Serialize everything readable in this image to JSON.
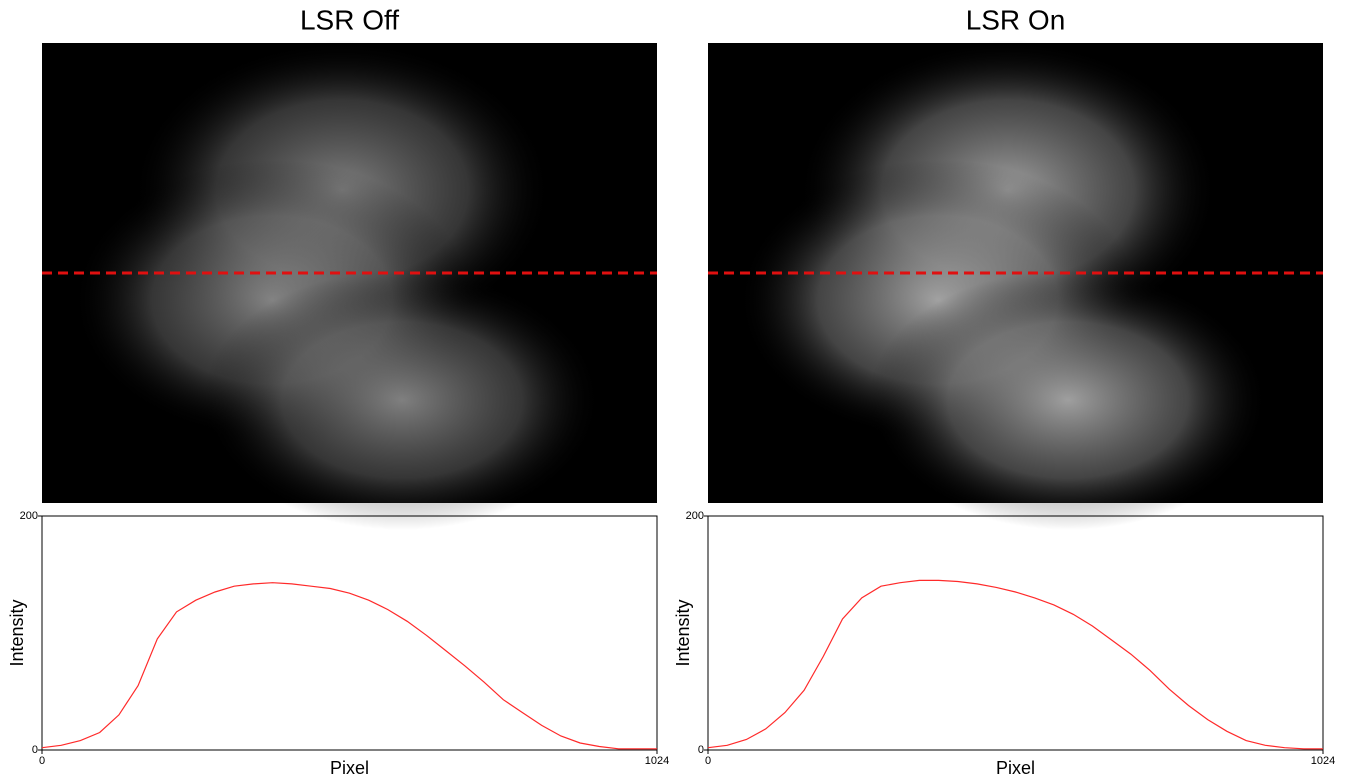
{
  "chart_data": [
    {
      "type": "line",
      "title": "LSR Off",
      "x_label": "Pixel",
      "y_label": "Intensity",
      "color": "#ff2a2a",
      "x": [
        0,
        32,
        64,
        96,
        128,
        160,
        192,
        224,
        256,
        288,
        320,
        352,
        384,
        416,
        448,
        480,
        512,
        544,
        576,
        608,
        640,
        672,
        704,
        736,
        768,
        800,
        832,
        864,
        896,
        928,
        960,
        992,
        1024
      ],
      "values": [
        2,
        4,
        8,
        15,
        30,
        55,
        95,
        118,
        128,
        135,
        140,
        142,
        143,
        142,
        140,
        138,
        134,
        128,
        120,
        110,
        98,
        85,
        72,
        58,
        43,
        32,
        21,
        12,
        6,
        3,
        1,
        1,
        1
      ],
      "xlim": [
        0,
        1024
      ],
      "ylim": [
        0,
        200
      ],
      "xticks": [
        0,
        1024
      ],
      "yticks": [
        0,
        200
      ]
    },
    {
      "type": "line",
      "title": "LSR On",
      "x_label": "Pixel",
      "y_label": "Intensity",
      "color": "#ff2a2a",
      "x": [
        0,
        32,
        64,
        96,
        128,
        160,
        192,
        224,
        256,
        288,
        320,
        352,
        384,
        416,
        448,
        480,
        512,
        544,
        576,
        608,
        640,
        672,
        704,
        736,
        768,
        800,
        832,
        864,
        896,
        928,
        960,
        992,
        1024
      ],
      "values": [
        2,
        4,
        9,
        18,
        32,
        51,
        80,
        112,
        130,
        140,
        143,
        145,
        145,
        144,
        142,
        139,
        135,
        130,
        124,
        116,
        106,
        94,
        82,
        68,
        52,
        38,
        26,
        16,
        8,
        4,
        2,
        1,
        1
      ],
      "xlim": [
        0,
        1024
      ],
      "ylim": [
        0,
        200
      ],
      "xticks": [
        0,
        1024
      ],
      "yticks": [
        0,
        200
      ]
    }
  ]
}
